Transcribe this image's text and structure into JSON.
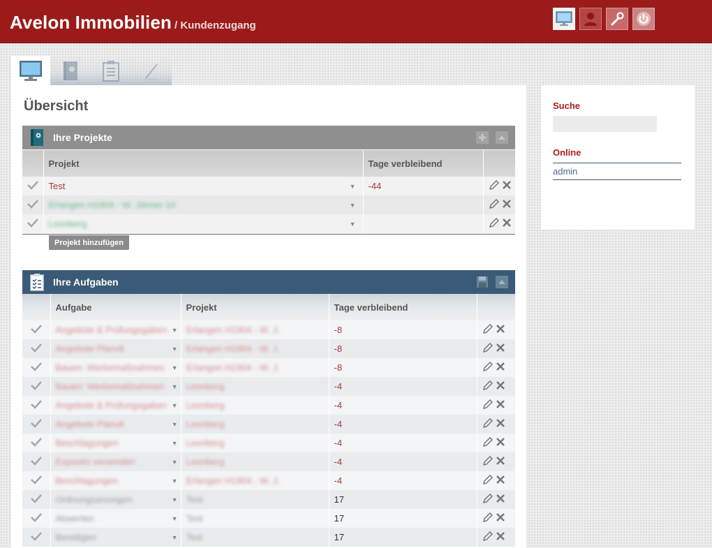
{
  "header": {
    "brand": "Avelon Immobilien",
    "subtitle": "/ Kundenzugang",
    "buttons": [
      {
        "name": "monitor-icon"
      },
      {
        "name": "user-icon"
      },
      {
        "name": "wrench-icon"
      },
      {
        "name": "power-icon"
      }
    ],
    "colors": {
      "bar": "#9b1b1b"
    }
  },
  "tabs": [
    {
      "icon": "monitor-icon",
      "active": true
    },
    {
      "icon": "project-book-icon",
      "active": false
    },
    {
      "icon": "clipboard-icon",
      "active": false
    },
    {
      "icon": "pen-icon",
      "active": false
    }
  ],
  "main": {
    "title": "Übersicht",
    "projects": {
      "title": "Ihre Projekte",
      "columns": [
        "",
        "Projekt",
        "Tage verbleibend",
        ""
      ],
      "rows": [
        {
          "name": "Test",
          "days": "-44",
          "style": "red"
        },
        {
          "name": "Erlangen H1904 - W. Jänner 10",
          "days": "",
          "style": "blur-green"
        },
        {
          "name": "Leonberg",
          "days": "",
          "style": "blur-green"
        }
      ],
      "add_button": "Projekt hinzufügen"
    },
    "tasks": {
      "title": "Ihre Aufgaben",
      "columns": [
        "",
        "Aufgabe",
        "Projekt",
        "Tage verbleibend",
        ""
      ],
      "rows": [
        {
          "task": "Angebote & Prüfungsgaben",
          "project": "Erlangen H1904 - W. J.",
          "days": "-8",
          "style": "blur-red"
        },
        {
          "task": "Angebote Planvlt",
          "project": "Erlangen H1904 - W. J.",
          "days": "-8",
          "style": "blur-red"
        },
        {
          "task": "Bauen: Werbemaßnahmen",
          "project": "Erlangen H1904 - W. J.",
          "days": "-8",
          "style": "blur-red"
        },
        {
          "task": "Bauen: Werbemaßnahmen",
          "project": "Leonberg",
          "days": "-4",
          "style": "blur-red"
        },
        {
          "task": "Angebote & Prüfungsgaben",
          "project": "Leonberg",
          "days": "-4",
          "style": "blur-red"
        },
        {
          "task": "Angebote Planvlt",
          "project": "Leonberg",
          "days": "-4",
          "style": "blur-red"
        },
        {
          "task": "Beschlagungen",
          "project": "Leonberg",
          "days": "-4",
          "style": "blur-red"
        },
        {
          "task": "Exposés versenden",
          "project": "Leonberg",
          "days": "-4",
          "style": "blur-red"
        },
        {
          "task": "Beschlagungen",
          "project": "Erlangen H1904 - W. J.",
          "days": "-4",
          "style": "blur-red"
        },
        {
          "task": "Ordnungsanzeigen",
          "project": "Test",
          "days": "17",
          "style": "blur-grey"
        },
        {
          "task": "Abwerten",
          "project": "Test",
          "days": "17",
          "style": "blur-grey"
        },
        {
          "task": "Bereitigen",
          "project": "Test",
          "days": "17",
          "style": "blur-grey"
        }
      ]
    }
  },
  "sidebar": {
    "search_label": "Suche",
    "online_label": "Online",
    "online_user": "admin"
  }
}
